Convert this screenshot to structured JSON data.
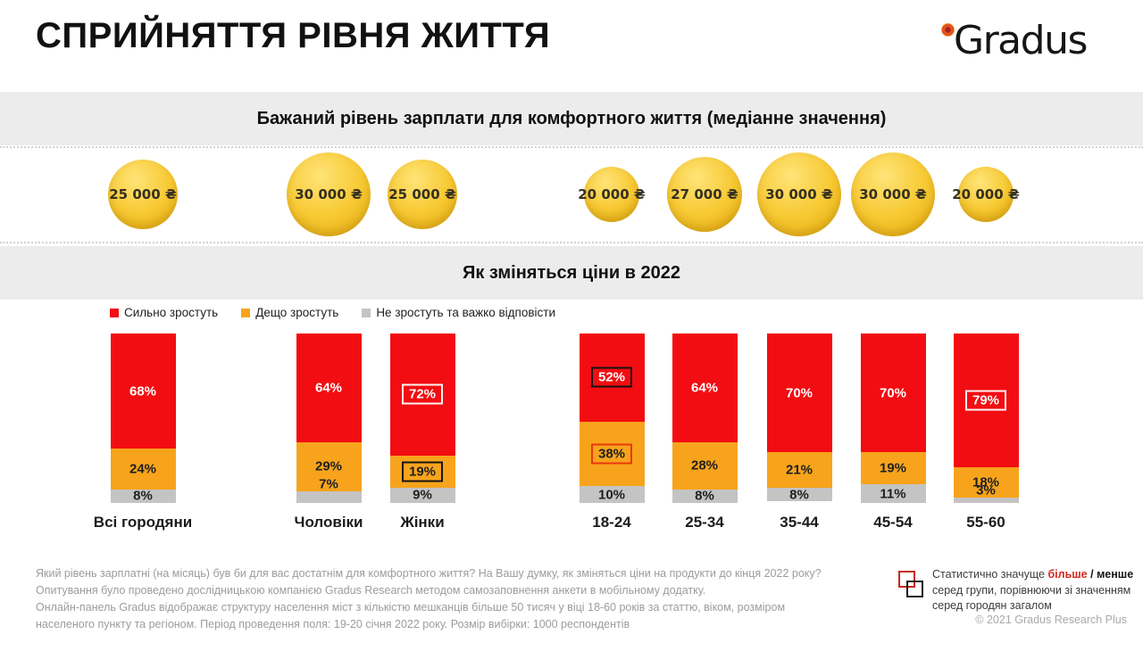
{
  "header": {
    "title": "СПРИЙНЯТТЯ РІВНЯ ЖИТТЯ",
    "brand": "Gradus"
  },
  "salary_section": {
    "band_title": "Бажаний рівень зарплати для комфортного життя (медіанне значення)"
  },
  "prices_section": {
    "band_title": "Як зміняться ціни в 2022"
  },
  "legend": [
    {
      "label": "Сильно зростуть",
      "color": "#f20d12"
    },
    {
      "label": "Дещо зростуть",
      "color": "#f7a41c"
    },
    {
      "label": "Не зростуть та важко відповісти",
      "color": "#c4c4c4"
    }
  ],
  "chart_data": {
    "type": "bar",
    "stacked": true,
    "unit": "%",
    "categories": [
      "Всі городяни",
      "Чоловіки",
      "Жінки",
      "18-24",
      "25-34",
      "35-44",
      "45-54",
      "55-60"
    ],
    "salary_median_uah": [
      25000,
      30000,
      25000,
      20000,
      27000,
      30000,
      30000,
      20000
    ],
    "salary_labels": [
      "25 000 ₴",
      "30 000 ₴",
      "25 000 ₴",
      "20 000 ₴",
      "27 000 ₴",
      "30 000 ₴",
      "30 000 ₴",
      "20 000 ₴"
    ],
    "series": [
      {
        "name": "Сильно зростуть",
        "color": "#f20d12",
        "text_color": "#ffffff",
        "values": [
          68,
          64,
          72,
          52,
          64,
          70,
          70,
          79
        ]
      },
      {
        "name": "Дещо зростуть",
        "color": "#f7a41c",
        "text_color": "#1f1f1f",
        "values": [
          24,
          29,
          19,
          38,
          28,
          21,
          19,
          18
        ]
      },
      {
        "name": "Не зростуть та важко відповісти",
        "color": "#c4c4c4",
        "text_color": "#1f1f1f",
        "values": [
          8,
          7,
          9,
          10,
          8,
          8,
          11,
          3
        ]
      }
    ],
    "significance_boxes": [
      {
        "category_index": 2,
        "series_index": 0,
        "box_color": "white",
        "meaning": "more"
      },
      {
        "category_index": 2,
        "series_index": 1,
        "box_color": "black",
        "meaning": "less"
      },
      {
        "category_index": 3,
        "series_index": 0,
        "box_color": "black",
        "meaning": "less"
      },
      {
        "category_index": 3,
        "series_index": 1,
        "box_color": "red",
        "meaning": "more"
      },
      {
        "category_index": 7,
        "series_index": 0,
        "box_color": "white",
        "meaning": "more"
      }
    ]
  },
  "footnote_lines": [
    "Який рівень зарплатні (на місяць) був би для вас достатнім для комфортного життя? На Вашу думку, як зміняться ціни на продукти до кінця 2022 року?",
    "Опитування було проведено дослідницькою компанією Gradus Research методом самозаповнення анкети в мобільному додатку.",
    "Онлайн-панель Gradus відображає структуру населення міст з кількістю мешканців більше 50 тисяч у віці 18-60 років за статтю, віком, розміром",
    "населеного пункту та регіоном. Період проведення поля: 19-20 січня 2022 року. Розмір вибірки: 1000 респондентів"
  ],
  "significance_note": {
    "parts": [
      {
        "text": "Статистично значуще ",
        "style": "normal"
      },
      {
        "text": "більше",
        "style": "red-bold"
      },
      {
        "text": " / ",
        "style": "bold"
      },
      {
        "text": "менше",
        "style": "bold"
      },
      {
        "text": " серед групи, порівнюючи зі значенням серед городян загалом",
        "style": "normal"
      }
    ]
  },
  "copyright": "© 2021 Gradus Research Plus"
}
